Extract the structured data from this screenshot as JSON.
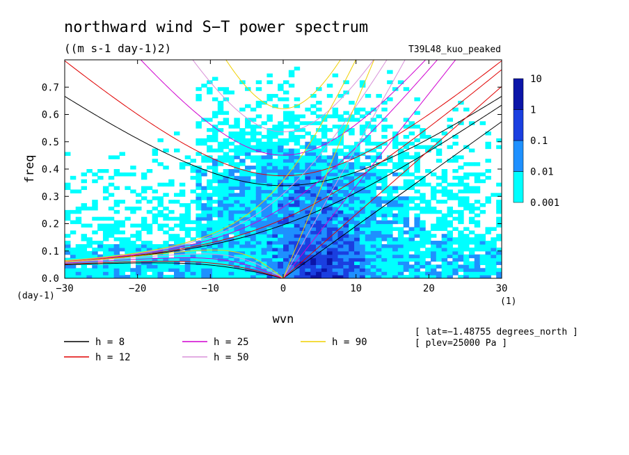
{
  "chart_data": {
    "type": "heatmap",
    "title": "northward wind S−T power spectrum",
    "subtitle": "((m s-1 day-1)2)",
    "run_label": "T39L48_kuo_peaked",
    "xlabel": "wvn",
    "ylabel": "freq",
    "x_unit": "(1)",
    "y_unit": "(day-1)",
    "xlim": [
      -30,
      30
    ],
    "ylim": [
      0,
      0.8
    ],
    "x_ticks": [
      -30,
      -20,
      -10,
      0,
      10,
      20,
      30
    ],
    "x_tick_labels": [
      "−30",
      "−20",
      "−10",
      "0",
      "10",
      "20",
      "30"
    ],
    "y_ticks": [
      0.0,
      0.1,
      0.2,
      0.3,
      0.4,
      0.5,
      0.6,
      0.7
    ],
    "y_tick_labels": [
      "0.0",
      "0.1",
      "0.2",
      "0.3",
      "0.4",
      "0.5",
      "0.6",
      "0.7"
    ],
    "colorbar": {
      "levels": [
        "0.001",
        "0.01",
        "0.1",
        "1",
        "10"
      ],
      "colors": [
        "#00ffff",
        "#1e90ff",
        "#1a3fe0",
        "#0b15a8",
        "#4412b0"
      ]
    },
    "field": {
      "description_levels": [
        0,
        1,
        2,
        3
      ],
      "peak_region_wvn": [
        0,
        10
      ],
      "peak_region_freq": [
        0,
        0.25
      ]
    },
    "dispersion_curves": [
      {
        "name": "h =  8",
        "h": 8,
        "color": "#000000"
      },
      {
        "name": "h = 12",
        "h": 12,
        "color": "#e00000"
      },
      {
        "name": "h = 25",
        "h": 25,
        "color": "#d000d0"
      },
      {
        "name": "h = 50",
        "h": 50,
        "color": "#d890d8"
      },
      {
        "name": "h = 90",
        "h": 90,
        "color": "#f0d000"
      }
    ],
    "legend_placement": "bottom-left",
    "info_lines": [
      "[ lat=−1.48755 degrees_north ]",
      "[ plev=25000 Pa ]"
    ],
    "grid": false
  }
}
